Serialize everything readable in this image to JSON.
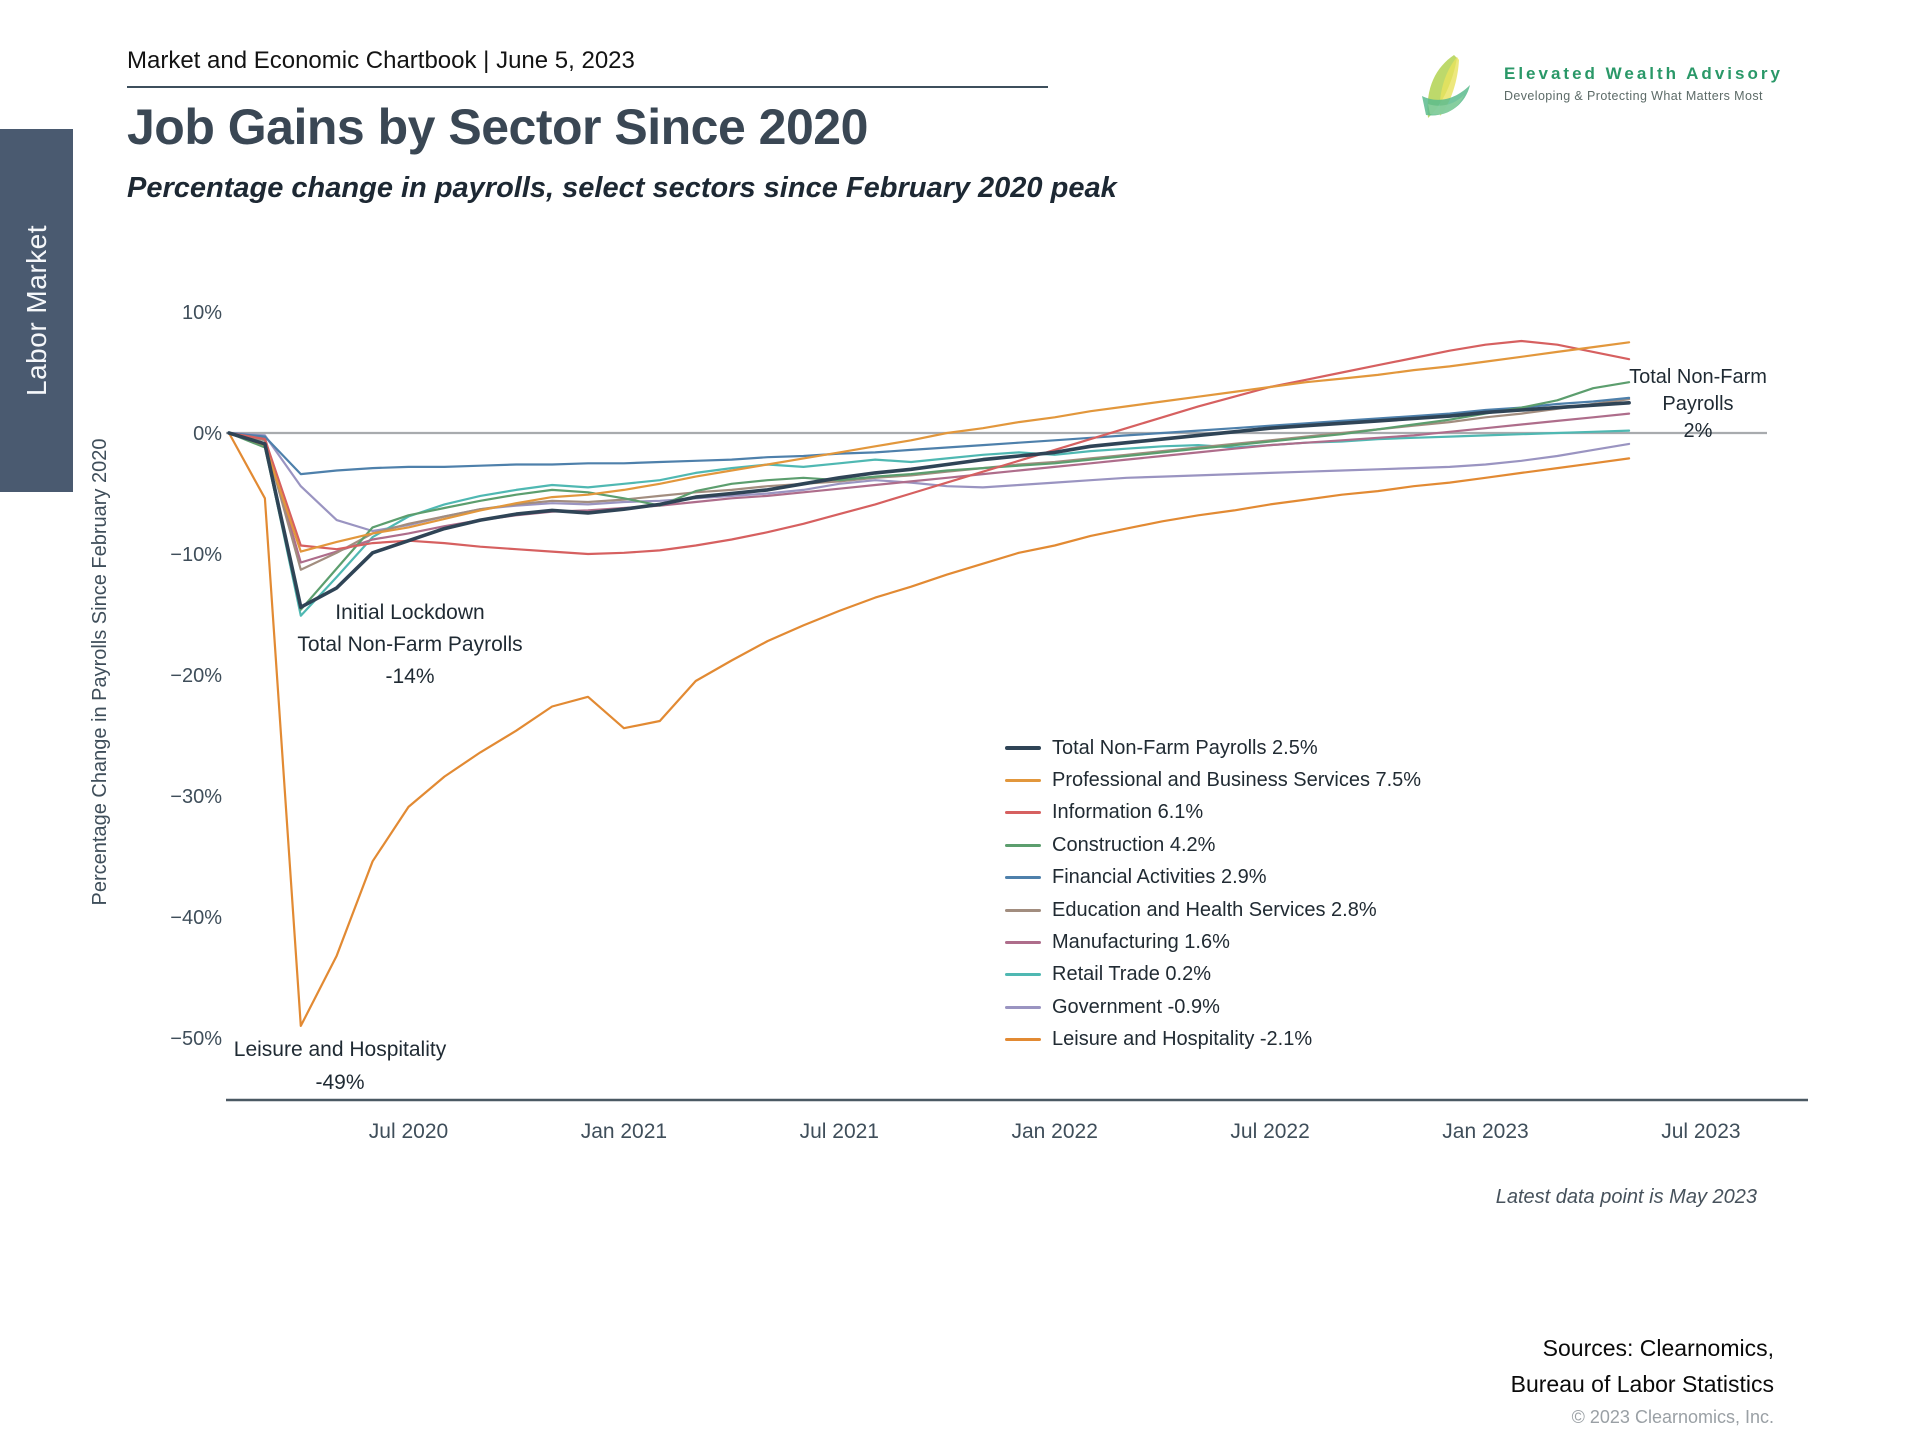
{
  "header": {
    "title": "Market and Economic Chartbook | June 5, 2023"
  },
  "logo": {
    "name": "Elevated Wealth Advisory",
    "tagline": "Developing & Protecting What Matters Most"
  },
  "sidebar": {
    "tab": "Labor Market"
  },
  "page": {
    "title": "Job Gains by Sector Since 2020",
    "subtitle": "Percentage change in payrolls, select sectors since February 2020 peak"
  },
  "annotations": {
    "lockdown": {
      "line1": "Initial Lockdown",
      "line2": "Total Non-Farm Payrolls",
      "line3": "-14%"
    },
    "leisure": {
      "line1": "Leisure and Hospitality",
      "line2": "-49%"
    },
    "total_end": {
      "line1": "Total Non-Farm",
      "line2": "Payrolls",
      "line3": "2%"
    }
  },
  "footnote": "Latest data point is May 2023",
  "sources": {
    "line1": "Sources: Clearnomics,",
    "line2": "Bureau of Labor Statistics",
    "copyright": "© 2023 Clearnomics, Inc."
  },
  "chart_data": {
    "type": "line",
    "title": "Job Gains by Sector Since 2020",
    "ylabel": "Percentage Change in Payrolls Since February 2020",
    "ylim": [
      -55,
      12
    ],
    "grid": false,
    "legend_position": "center-right",
    "zero_line": 0,
    "x_months": [
      "2020-02",
      "2020-03",
      "2020-04",
      "2020-05",
      "2020-06",
      "2020-07",
      "2020-08",
      "2020-09",
      "2020-10",
      "2020-11",
      "2020-12",
      "2021-01",
      "2021-02",
      "2021-03",
      "2021-04",
      "2021-05",
      "2021-06",
      "2021-07",
      "2021-08",
      "2021-09",
      "2021-10",
      "2021-11",
      "2021-12",
      "2022-01",
      "2022-02",
      "2022-03",
      "2022-04",
      "2022-05",
      "2022-06",
      "2022-07",
      "2022-08",
      "2022-09",
      "2022-10",
      "2022-11",
      "2022-12",
      "2023-01",
      "2023-02",
      "2023-03",
      "2023-04",
      "2023-05"
    ],
    "x_ticks": [
      {
        "label": "Jul 2020",
        "month_index": 5
      },
      {
        "label": "Jan 2021",
        "month_index": 11
      },
      {
        "label": "Jul 2021",
        "month_index": 17
      },
      {
        "label": "Jan 2022",
        "month_index": 23
      },
      {
        "label": "Jul 2022",
        "month_index": 29
      },
      {
        "label": "Jan 2023",
        "month_index": 35
      },
      {
        "label": "Jul 2023",
        "month_index": 41
      }
    ],
    "y_ticks": [
      {
        "label": "10%",
        "value": 10
      },
      {
        "label": "0%",
        "value": 0
      },
      {
        "label": "−10%",
        "value": -10
      },
      {
        "label": "−20%",
        "value": -20
      },
      {
        "label": "−30%",
        "value": -30
      },
      {
        "label": "−40%",
        "value": -40
      },
      {
        "label": "−50%",
        "value": -50
      }
    ],
    "series": [
      {
        "id": "total-nonfarm",
        "name": "Total Non-Farm Payrolls",
        "final_value": 2.5,
        "legend_label": "Total Non-Farm Payrolls 2.5%",
        "color": "#2f4456",
        "values": [
          0,
          -0.9,
          -14.4,
          -12.8,
          -9.9,
          -8.9,
          -7.9,
          -7.2,
          -6.7,
          -6.4,
          -6.6,
          -6.3,
          -5.9,
          -5.3,
          -5.0,
          -4.7,
          -4.2,
          -3.7,
          -3.3,
          -3.0,
          -2.6,
          -2.2,
          -1.9,
          -1.6,
          -1.1,
          -0.8,
          -0.5,
          -0.2,
          0.1,
          0.4,
          0.6,
          0.8,
          1.0,
          1.2,
          1.4,
          1.7,
          1.9,
          2.1,
          2.3,
          2.5
        ]
      },
      {
        "id": "professional-business",
        "name": "Professional and Business Services",
        "final_value": 7.5,
        "legend_label": "Professional and Business Services 7.5%",
        "color": "#e2973c",
        "values": [
          0,
          -1.0,
          -9.8,
          -9.0,
          -8.3,
          -7.8,
          -7.1,
          -6.4,
          -5.8,
          -5.3,
          -5.1,
          -4.7,
          -4.2,
          -3.6,
          -3.1,
          -2.6,
          -2.1,
          -1.6,
          -1.1,
          -0.6,
          0.0,
          0.4,
          0.9,
          1.3,
          1.8,
          2.2,
          2.6,
          3.0,
          3.4,
          3.8,
          4.2,
          4.5,
          4.8,
          5.2,
          5.5,
          5.9,
          6.3,
          6.7,
          7.1,
          7.5
        ]
      },
      {
        "id": "information",
        "name": "Information",
        "final_value": 6.1,
        "legend_label": "Information 6.1%",
        "color": "#d66060",
        "values": [
          0,
          -0.5,
          -9.3,
          -9.6,
          -9.1,
          -8.9,
          -9.1,
          -9.4,
          -9.6,
          -9.8,
          -10.0,
          -9.9,
          -9.7,
          -9.3,
          -8.8,
          -8.2,
          -7.5,
          -6.7,
          -5.9,
          -5.0,
          -4.1,
          -3.2,
          -2.3,
          -1.4,
          -0.5,
          0.4,
          1.3,
          2.2,
          3.0,
          3.8,
          4.4,
          5.0,
          5.6,
          6.2,
          6.8,
          7.3,
          7.6,
          7.3,
          6.7,
          6.1
        ]
      },
      {
        "id": "construction",
        "name": "Construction",
        "final_value": 4.2,
        "legend_label": "Construction 4.2%",
        "color": "#5c9e6e",
        "values": [
          0,
          -1.2,
          -14.6,
          -11.2,
          -7.8,
          -6.8,
          -6.2,
          -5.6,
          -5.1,
          -4.7,
          -4.9,
          -5.4,
          -6.0,
          -4.8,
          -4.2,
          -3.9,
          -3.7,
          -3.9,
          -3.6,
          -3.4,
          -3.1,
          -2.9,
          -2.7,
          -2.5,
          -2.2,
          -1.9,
          -1.6,
          -1.3,
          -1.0,
          -0.7,
          -0.4,
          -0.1,
          0.3,
          0.7,
          1.1,
          1.6,
          2.1,
          2.7,
          3.7,
          4.2
        ]
      },
      {
        "id": "financial-activities",
        "name": "Financial Activities",
        "final_value": 2.9,
        "legend_label": "Financial Activities 2.9%",
        "color": "#4e80ab",
        "values": [
          0,
          -0.3,
          -3.4,
          -3.1,
          -2.9,
          -2.8,
          -2.8,
          -2.7,
          -2.6,
          -2.6,
          -2.5,
          -2.5,
          -2.4,
          -2.3,
          -2.2,
          -2.0,
          -1.9,
          -1.7,
          -1.6,
          -1.4,
          -1.2,
          -1.0,
          -0.8,
          -0.6,
          -0.4,
          -0.2,
          0.0,
          0.2,
          0.4,
          0.6,
          0.8,
          1.0,
          1.2,
          1.4,
          1.6,
          1.9,
          2.1,
          2.4,
          2.6,
          2.9
        ]
      },
      {
        "id": "education-health",
        "name": "Education and Health Services",
        "final_value": 2.8,
        "legend_label": "Education and Health Services 2.8%",
        "color": "#a28d7f",
        "values": [
          0,
          -0.6,
          -11.3,
          -9.9,
          -8.3,
          -7.5,
          -6.9,
          -6.3,
          -5.9,
          -5.6,
          -5.7,
          -5.5,
          -5.2,
          -4.9,
          -4.7,
          -4.4,
          -4.2,
          -4.0,
          -3.7,
          -3.5,
          -3.2,
          -2.9,
          -2.6,
          -2.4,
          -2.1,
          -1.8,
          -1.5,
          -1.2,
          -0.9,
          -0.6,
          -0.3,
          0.0,
          0.3,
          0.6,
          0.9,
          1.3,
          1.6,
          2.0,
          2.4,
          2.8
        ]
      },
      {
        "id": "manufacturing",
        "name": "Manufacturing",
        "final_value": 1.6,
        "legend_label": "Manufacturing 1.6%",
        "color": "#ae6d8b",
        "values": [
          0,
          -0.4,
          -10.7,
          -9.8,
          -8.8,
          -8.3,
          -7.7,
          -7.2,
          -6.8,
          -6.5,
          -6.4,
          -6.2,
          -6.0,
          -5.7,
          -5.4,
          -5.2,
          -4.9,
          -4.6,
          -4.3,
          -4.0,
          -3.7,
          -3.4,
          -3.1,
          -2.8,
          -2.5,
          -2.2,
          -1.9,
          -1.6,
          -1.3,
          -1.0,
          -0.8,
          -0.6,
          -0.4,
          -0.2,
          0.1,
          0.4,
          0.7,
          1.0,
          1.3,
          1.6
        ]
      },
      {
        "id": "retail-trade",
        "name": "Retail Trade",
        "final_value": 0.2,
        "legend_label": "Retail Trade 0.2%",
        "color": "#4fb8b2",
        "values": [
          0,
          -1.0,
          -15.1,
          -11.9,
          -8.6,
          -6.9,
          -5.9,
          -5.2,
          -4.7,
          -4.3,
          -4.5,
          -4.2,
          -3.9,
          -3.3,
          -2.9,
          -2.6,
          -2.8,
          -2.5,
          -2.2,
          -2.4,
          -2.1,
          -1.8,
          -1.6,
          -1.8,
          -1.5,
          -1.3,
          -1.1,
          -1.0,
          -1.2,
          -1.0,
          -0.8,
          -0.7,
          -0.5,
          -0.4,
          -0.3,
          -0.2,
          -0.1,
          0.0,
          0.1,
          0.2
        ]
      },
      {
        "id": "government",
        "name": "Government",
        "final_value": -0.9,
        "legend_label": "Government -0.9%",
        "color": "#9a94c1",
        "values": [
          0,
          -0.2,
          -4.4,
          -7.2,
          -8.1,
          -7.6,
          -6.9,
          -6.3,
          -6.0,
          -5.8,
          -5.9,
          -5.7,
          -5.6,
          -5.4,
          -5.2,
          -5.0,
          -4.7,
          -4.2,
          -3.9,
          -4.1,
          -4.4,
          -4.5,
          -4.3,
          -4.1,
          -3.9,
          -3.7,
          -3.6,
          -3.5,
          -3.4,
          -3.3,
          -3.2,
          -3.1,
          -3.0,
          -2.9,
          -2.8,
          -2.6,
          -2.3,
          -1.9,
          -1.4,
          -0.9
        ]
      },
      {
        "id": "leisure-hospitality",
        "name": "Leisure and Hospitality",
        "final_value": -2.1,
        "legend_label": "Leisure and Hospitality -2.1%",
        "color": "#e28a33",
        "values": [
          0,
          -5.4,
          -49.0,
          -43.2,
          -35.4,
          -30.9,
          -28.4,
          -26.4,
          -24.6,
          -22.6,
          -21.8,
          -24.4,
          -23.8,
          -20.5,
          -18.8,
          -17.2,
          -15.9,
          -14.7,
          -13.6,
          -12.7,
          -11.7,
          -10.8,
          -9.9,
          -9.3,
          -8.5,
          -7.9,
          -7.3,
          -6.8,
          -6.4,
          -5.9,
          -5.5,
          -5.1,
          -4.8,
          -4.4,
          -4.1,
          -3.7,
          -3.3,
          -2.9,
          -2.5,
          -2.1
        ]
      }
    ]
  }
}
